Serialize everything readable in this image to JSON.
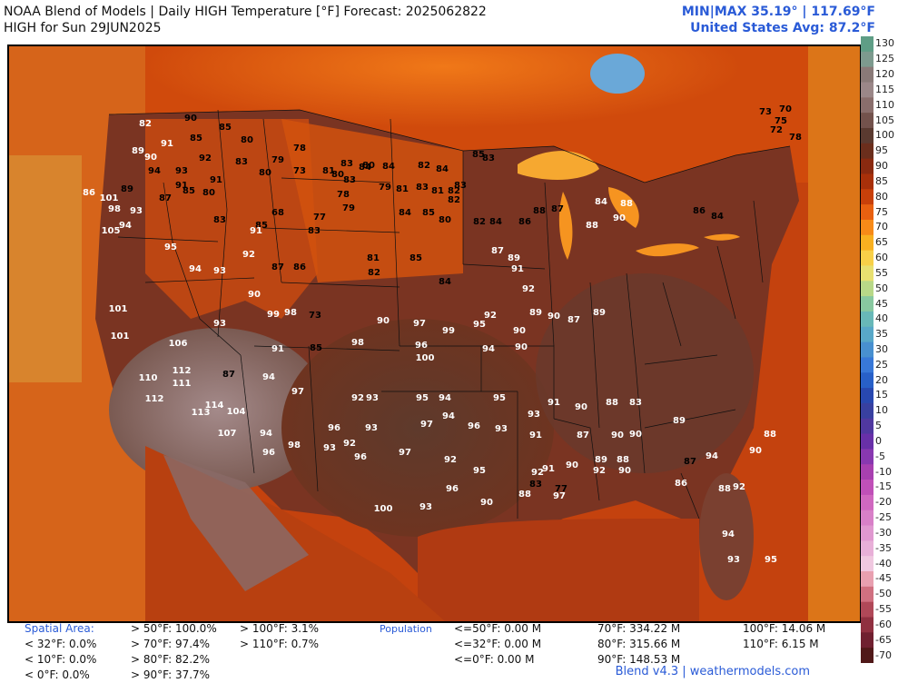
{
  "header": {
    "title": "NOAA Blend of Models | Daily HIGH Temperature [°F] Forecast: 2025062822",
    "subtitle": "HIGH for Sun 29JUN2025",
    "minmax": "MIN|MAX 35.19°  |  117.69°F",
    "us_avg": "United States Avg: 87.2°F"
  },
  "colorbar": {
    "ticks": [
      "130",
      "125",
      "120",
      "115",
      "110",
      "105",
      "100",
      "95",
      "90",
      "85",
      "80",
      "75",
      "70",
      "65",
      "60",
      "55",
      "50",
      "45",
      "40",
      "35",
      "30",
      "25",
      "20",
      "15",
      "10",
      "5",
      "0",
      "-5",
      "-10",
      "-15",
      "-20",
      "-25",
      "-30",
      "-35",
      "-40",
      "-45",
      "-50",
      "-55",
      "-60",
      "-65",
      "-70"
    ],
    "colors": [
      "#5f9e86",
      "#7d9a8e",
      "#8a7a78",
      "#9b8788",
      "#8a6e6c",
      "#73524c",
      "#5a3a30",
      "#6b2e1c",
      "#8a2a10",
      "#a8300a",
      "#c8400a",
      "#e86010",
      "#f78a18",
      "#f8b020",
      "#f8d048",
      "#e8e070",
      "#b8d888",
      "#88c8a0",
      "#68b8b8",
      "#58a8c8",
      "#4890d0",
      "#3878d8",
      "#2860c8",
      "#2848b0",
      "#3840a0",
      "#5038a0",
      "#6830a8",
      "#8838b0",
      "#a840b0",
      "#c050b8",
      "#d068c0",
      "#d880c8",
      "#e098d0",
      "#e8b0d8",
      "#f0c8e0",
      "#e8a0b0",
      "#d07080",
      "#b04858",
      "#903040",
      "#702030",
      "#501818"
    ]
  },
  "footer": {
    "spatial_title": "Spatial Area:",
    "spatial_col1": [
      "< 32°F: 0.0%",
      "< 10°F: 0.0%",
      "< 0°F: 0.0%"
    ],
    "spatial_col2": [
      "> 50°F: 100.0%",
      "> 70°F: 97.4%",
      "> 80°F: 82.2%",
      "> 90°F: 37.7%"
    ],
    "spatial_col3": [
      "> 100°F: 3.1%",
      "> 110°F: 0.7%"
    ],
    "population_title": "Population",
    "pop_col1": [
      "<=50°F: 0.00 M",
      "<=32°F: 0.00 M",
      "<=0°F: 0.00 M"
    ],
    "pop_col2": [
      "70°F: 334.22 M",
      "80°F: 315.66 M",
      "90°F: 148.53 M"
    ],
    "pop_col3": [
      "100°F: 14.06 M",
      "110°F: 6.15 M"
    ],
    "credit": "Blend v4.3 | weathermodels.com"
  },
  "map": {
    "temps": [
      {
        "t": "82",
        "c": "w"
      },
      {
        "t": "90",
        "c": "b"
      },
      {
        "t": "85",
        "c": "b"
      },
      {
        "t": "89",
        "c": "w"
      },
      {
        "t": "91",
        "c": "w"
      },
      {
        "t": "90",
        "c": "w"
      },
      {
        "t": "85",
        "c": "b"
      },
      {
        "t": "80",
        "c": "b"
      },
      {
        "t": "94",
        "c": "b"
      },
      {
        "t": "93",
        "c": "b"
      },
      {
        "t": "91",
        "c": "b"
      },
      {
        "t": "92",
        "c": "b"
      },
      {
        "t": "83",
        "c": "b"
      },
      {
        "t": "78",
        "c": "b"
      },
      {
        "t": "79",
        "c": "b"
      },
      {
        "t": "80",
        "c": "b"
      },
      {
        "t": "83",
        "c": "b"
      },
      {
        "t": "80",
        "c": "b"
      },
      {
        "t": "84",
        "c": "b"
      },
      {
        "t": "83",
        "c": "b"
      },
      {
        "t": "85",
        "c": "b"
      },
      {
        "t": "83",
        "c": "b"
      },
      {
        "t": "73",
        "c": "b"
      },
      {
        "t": "75",
        "c": "b"
      },
      {
        "t": "70",
        "c": "b"
      },
      {
        "t": "72",
        "c": "b"
      },
      {
        "t": "78",
        "c": "b"
      },
      {
        "t": "86",
        "c": "w"
      },
      {
        "t": "101",
        "c": "w"
      },
      {
        "t": "89",
        "c": "b"
      },
      {
        "t": "87",
        "c": "b"
      },
      {
        "t": "85",
        "c": "b"
      },
      {
        "t": "80",
        "c": "b"
      },
      {
        "t": "91",
        "c": "b"
      },
      {
        "t": "73",
        "c": "b"
      },
      {
        "t": "81",
        "c": "b"
      },
      {
        "t": "78",
        "c": "b"
      },
      {
        "t": "80",
        "c": "b"
      },
      {
        "t": "84",
        "c": "b"
      },
      {
        "t": "82",
        "c": "b"
      },
      {
        "t": "82",
        "c": "b"
      },
      {
        "t": "84",
        "c": "b"
      },
      {
        "t": "81",
        "c": "b"
      },
      {
        "t": "79",
        "c": "b"
      },
      {
        "t": "81",
        "c": "b"
      },
      {
        "t": "83",
        "c": "b"
      },
      {
        "t": "82",
        "c": "b"
      },
      {
        "t": "83",
        "c": "b"
      },
      {
        "t": "98",
        "c": "w"
      },
      {
        "t": "93",
        "c": "w"
      },
      {
        "t": "94",
        "c": "w"
      },
      {
        "t": "105",
        "c": "w"
      },
      {
        "t": "83",
        "c": "b"
      },
      {
        "t": "85",
        "c": "b"
      },
      {
        "t": "68",
        "c": "b"
      },
      {
        "t": "83",
        "c": "b"
      },
      {
        "t": "77",
        "c": "b"
      },
      {
        "t": "79",
        "c": "b"
      },
      {
        "t": "84",
        "c": "b"
      },
      {
        "t": "85",
        "c": "b"
      },
      {
        "t": "80",
        "c": "b"
      },
      {
        "t": "82",
        "c": "b"
      },
      {
        "t": "84",
        "c": "b"
      },
      {
        "t": "86",
        "c": "b"
      },
      {
        "t": "88",
        "c": "b"
      },
      {
        "t": "87",
        "c": "b"
      },
      {
        "t": "84",
        "c": "w"
      },
      {
        "t": "88",
        "c": "w"
      },
      {
        "t": "90",
        "c": "w"
      },
      {
        "t": "88",
        "c": "w"
      },
      {
        "t": "86",
        "c": "b"
      },
      {
        "t": "84",
        "c": "b"
      },
      {
        "t": "95",
        "c": "w"
      },
      {
        "t": "94",
        "c": "w"
      },
      {
        "t": "93",
        "c": "w"
      },
      {
        "t": "92",
        "c": "w"
      },
      {
        "t": "90",
        "c": "w"
      },
      {
        "t": "91",
        "c": "w"
      },
      {
        "t": "87",
        "c": "b"
      },
      {
        "t": "86",
        "c": "b"
      },
      {
        "t": "81",
        "c": "b"
      },
      {
        "t": "82",
        "c": "b"
      },
      {
        "t": "85",
        "c": "b"
      },
      {
        "t": "84",
        "c": "b"
      },
      {
        "t": "87",
        "c": "w"
      },
      {
        "t": "89",
        "c": "w"
      },
      {
        "t": "91",
        "c": "w"
      },
      {
        "t": "92",
        "c": "w"
      },
      {
        "t": "101",
        "c": "w"
      },
      {
        "t": "101",
        "c": "w"
      },
      {
        "t": "93",
        "c": "w"
      },
      {
        "t": "99",
        "c": "w"
      },
      {
        "t": "98",
        "c": "w"
      },
      {
        "t": "73",
        "c": "b"
      },
      {
        "t": "90",
        "c": "w"
      },
      {
        "t": "97",
        "c": "w"
      },
      {
        "t": "99",
        "c": "w"
      },
      {
        "t": "95",
        "c": "w"
      },
      {
        "t": "92",
        "c": "w"
      },
      {
        "t": "90",
        "c": "w"
      },
      {
        "t": "89",
        "c": "w"
      },
      {
        "t": "90",
        "c": "w"
      },
      {
        "t": "87",
        "c": "w"
      },
      {
        "t": "89",
        "c": "w"
      },
      {
        "t": "106",
        "c": "w"
      },
      {
        "t": "91",
        "c": "w"
      },
      {
        "t": "85",
        "c": "b"
      },
      {
        "t": "98",
        "c": "w"
      },
      {
        "t": "96",
        "c": "w"
      },
      {
        "t": "100",
        "c": "w"
      },
      {
        "t": "94",
        "c": "w"
      },
      {
        "t": "90",
        "c": "w"
      },
      {
        "t": "110",
        "c": "w"
      },
      {
        "t": "112",
        "c": "w"
      },
      {
        "t": "111",
        "c": "w"
      },
      {
        "t": "87",
        "c": "b"
      },
      {
        "t": "94",
        "c": "w"
      },
      {
        "t": "97",
        "c": "w"
      },
      {
        "t": "92",
        "c": "w"
      },
      {
        "t": "93",
        "c": "w"
      },
      {
        "t": "95",
        "c": "w"
      },
      {
        "t": "94",
        "c": "w"
      },
      {
        "t": "95",
        "c": "w"
      },
      {
        "t": "93",
        "c": "w"
      },
      {
        "t": "91",
        "c": "w"
      },
      {
        "t": "90",
        "c": "w"
      },
      {
        "t": "88",
        "c": "w"
      },
      {
        "t": "83",
        "c": "w"
      },
      {
        "t": "112",
        "c": "w"
      },
      {
        "t": "113",
        "c": "w"
      },
      {
        "t": "114",
        "c": "w"
      },
      {
        "t": "104",
        "c": "w"
      },
      {
        "t": "107",
        "c": "w"
      },
      {
        "t": "94",
        "c": "w"
      },
      {
        "t": "96",
        "c": "w"
      },
      {
        "t": "93",
        "c": "w"
      },
      {
        "t": "97",
        "c": "w"
      },
      {
        "t": "94",
        "c": "w"
      },
      {
        "t": "96",
        "c": "w"
      },
      {
        "t": "93",
        "c": "w"
      },
      {
        "t": "91",
        "c": "w"
      },
      {
        "t": "87",
        "c": "w"
      },
      {
        "t": "90",
        "c": "w"
      },
      {
        "t": "90",
        "c": "w"
      },
      {
        "t": "98",
        "c": "w"
      },
      {
        "t": "96",
        "c": "w"
      },
      {
        "t": "93",
        "c": "w"
      },
      {
        "t": "92",
        "c": "w"
      },
      {
        "t": "96",
        "c": "w"
      },
      {
        "t": "97",
        "c": "w"
      },
      {
        "t": "92",
        "c": "w"
      },
      {
        "t": "95",
        "c": "w"
      },
      {
        "t": "92",
        "c": "w"
      },
      {
        "t": "91",
        "c": "w"
      },
      {
        "t": "90",
        "c": "w"
      },
      {
        "t": "89",
        "c": "w"
      },
      {
        "t": "88",
        "c": "w"
      },
      {
        "t": "89",
        "c": "w"
      },
      {
        "t": "87",
        "c": "b"
      },
      {
        "t": "94",
        "c": "w"
      },
      {
        "t": "100",
        "c": "w"
      },
      {
        "t": "93",
        "c": "w"
      },
      {
        "t": "96",
        "c": "w"
      },
      {
        "t": "90",
        "c": "w"
      },
      {
        "t": "88",
        "c": "w"
      },
      {
        "t": "97",
        "c": "w"
      },
      {
        "t": "92",
        "c": "w"
      },
      {
        "t": "90",
        "c": "w"
      },
      {
        "t": "86",
        "c": "w"
      },
      {
        "t": "88",
        "c": "w"
      },
      {
        "t": "92",
        "c": "w"
      },
      {
        "t": "94",
        "c": "w"
      },
      {
        "t": "93",
        "c": "w"
      },
      {
        "t": "95",
        "c": "w"
      },
      {
        "t": "90",
        "c": "w"
      },
      {
        "t": "88",
        "c": "w"
      },
      {
        "t": "83",
        "c": "b"
      },
      {
        "t": "77",
        "c": "b"
      },
      {
        "t": "79",
        "c": "b"
      },
      {
        "t": "88",
        "c": "w"
      },
      {
        "t": "89",
        "c": "w"
      },
      {
        "t": "90",
        "c": "w"
      },
      {
        "t": "86",
        "c": "w"
      },
      {
        "t": "85",
        "c": "w"
      },
      {
        "t": "88",
        "c": "w"
      },
      {
        "t": "88",
        "c": "w"
      }
    ]
  }
}
